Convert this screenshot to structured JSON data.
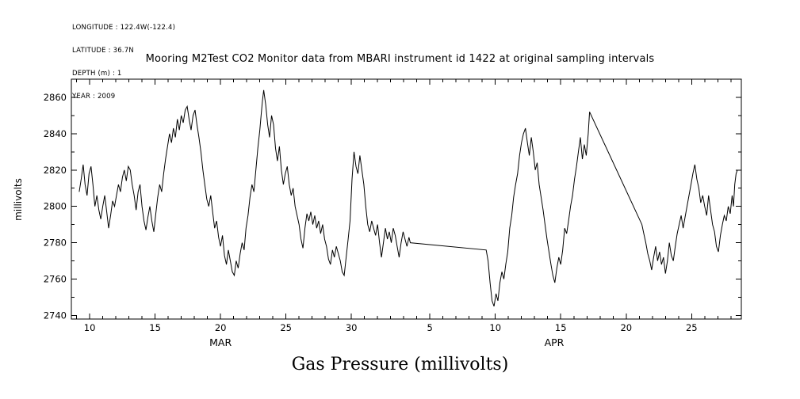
{
  "header": {
    "info_lines": [
      "LONGITUDE : 122.4W(-122.4)",
      "LATITUDE : 36.7N",
      "DEPTH (m) : 1",
      "YEAR : 2009"
    ]
  },
  "chart_data": {
    "type": "line",
    "title": "Mooring M2Test CO2 Monitor data from MBARI instrument id 1422 at original sampling intervals",
    "xlabel": "Gas Pressure (millivolts)",
    "ylabel": "millivolts",
    "background_color": "#ffffff",
    "line_color": "#000000",
    "axis_color": "#000000",
    "grid": false,
    "legend": false,
    "xlim": [
      8.6,
      59.8
    ],
    "ylim": [
      2738,
      2870
    ],
    "y_ticks": [
      2740,
      2760,
      2780,
      2800,
      2820,
      2840,
      2860
    ],
    "x_ticks": [
      {
        "pos": 10,
        "label": "10"
      },
      {
        "pos": 15,
        "label": "15"
      },
      {
        "pos": 20,
        "label": "20"
      },
      {
        "pos": 25,
        "label": "25"
      },
      {
        "pos": 30,
        "label": "30"
      },
      {
        "pos": 36,
        "label": "5"
      },
      {
        "pos": 41,
        "label": "10"
      },
      {
        "pos": 46,
        "label": "15"
      },
      {
        "pos": 51,
        "label": "20"
      },
      {
        "pos": 56,
        "label": "25"
      }
    ],
    "month_labels": [
      {
        "pos": 20,
        "label": "MAR"
      },
      {
        "pos": 45.5,
        "label": "APR"
      }
    ],
    "xtick_unit": "day of month",
    "annotations": [
      "straight segment Apr 3 to Apr 9 indicates data gap",
      "straight segment Apr 17 to Apr 21 indicates data gap"
    ],
    "series": [
      {
        "name": "Gas Pressure",
        "unit": "millivolts",
        "x_encoding": "day number, March day d = d, April day d = 31 + d",
        "points": [
          [
            9.2,
            2808
          ],
          [
            9.35,
            2815
          ],
          [
            9.5,
            2823
          ],
          [
            9.65,
            2812
          ],
          [
            9.8,
            2806
          ],
          [
            9.95,
            2818
          ],
          [
            10.1,
            2822
          ],
          [
            10.25,
            2812
          ],
          [
            10.4,
            2800
          ],
          [
            10.55,
            2806
          ],
          [
            10.7,
            2798
          ],
          [
            10.85,
            2793
          ],
          [
            11.0,
            2800
          ],
          [
            11.15,
            2806
          ],
          [
            11.3,
            2797
          ],
          [
            11.45,
            2788
          ],
          [
            11.6,
            2795
          ],
          [
            11.75,
            2803
          ],
          [
            11.9,
            2800
          ],
          [
            12.05,
            2806
          ],
          [
            12.2,
            2812
          ],
          [
            12.35,
            2808
          ],
          [
            12.5,
            2816
          ],
          [
            12.65,
            2820
          ],
          [
            12.8,
            2814
          ],
          [
            12.95,
            2822
          ],
          [
            13.1,
            2820
          ],
          [
            13.25,
            2812
          ],
          [
            13.4,
            2806
          ],
          [
            13.55,
            2798
          ],
          [
            13.7,
            2808
          ],
          [
            13.85,
            2812
          ],
          [
            14.0,
            2800
          ],
          [
            14.15,
            2792
          ],
          [
            14.3,
            2787
          ],
          [
            14.45,
            2794
          ],
          [
            14.6,
            2800
          ],
          [
            14.75,
            2792
          ],
          [
            14.9,
            2786
          ],
          [
            15.05,
            2796
          ],
          [
            15.2,
            2805
          ],
          [
            15.35,
            2812
          ],
          [
            15.5,
            2808
          ],
          [
            15.65,
            2818
          ],
          [
            15.8,
            2826
          ],
          [
            15.95,
            2833
          ],
          [
            16.1,
            2840
          ],
          [
            16.25,
            2835
          ],
          [
            16.4,
            2843
          ],
          [
            16.55,
            2838
          ],
          [
            16.7,
            2848
          ],
          [
            16.85,
            2842
          ],
          [
            17.0,
            2850
          ],
          [
            17.15,
            2846
          ],
          [
            17.3,
            2853
          ],
          [
            17.45,
            2855
          ],
          [
            17.6,
            2848
          ],
          [
            17.75,
            2842
          ],
          [
            17.9,
            2850
          ],
          [
            18.05,
            2853
          ],
          [
            18.2,
            2845
          ],
          [
            18.35,
            2838
          ],
          [
            18.5,
            2830
          ],
          [
            18.65,
            2820
          ],
          [
            18.8,
            2812
          ],
          [
            18.95,
            2804
          ],
          [
            19.1,
            2800
          ],
          [
            19.25,
            2806
          ],
          [
            19.4,
            2797
          ],
          [
            19.55,
            2788
          ],
          [
            19.7,
            2792
          ],
          [
            19.85,
            2783
          ],
          [
            20.0,
            2778
          ],
          [
            20.15,
            2784
          ],
          [
            20.3,
            2773
          ],
          [
            20.45,
            2768
          ],
          [
            20.6,
            2776
          ],
          [
            20.75,
            2770
          ],
          [
            20.9,
            2764
          ],
          [
            21.05,
            2762
          ],
          [
            21.2,
            2770
          ],
          [
            21.35,
            2766
          ],
          [
            21.5,
            2774
          ],
          [
            21.65,
            2780
          ],
          [
            21.8,
            2776
          ],
          [
            21.95,
            2788
          ],
          [
            22.1,
            2795
          ],
          [
            22.25,
            2805
          ],
          [
            22.4,
            2812
          ],
          [
            22.55,
            2808
          ],
          [
            22.7,
            2820
          ],
          [
            22.85,
            2832
          ],
          [
            23.0,
            2842
          ],
          [
            23.1,
            2850
          ],
          [
            23.2,
            2858
          ],
          [
            23.3,
            2864
          ],
          [
            23.45,
            2856
          ],
          [
            23.6,
            2845
          ],
          [
            23.75,
            2838
          ],
          [
            23.9,
            2850
          ],
          [
            24.05,
            2845
          ],
          [
            24.2,
            2832
          ],
          [
            24.35,
            2825
          ],
          [
            24.5,
            2833
          ],
          [
            24.65,
            2820
          ],
          [
            24.8,
            2812
          ],
          [
            24.95,
            2818
          ],
          [
            25.1,
            2822
          ],
          [
            25.25,
            2812
          ],
          [
            25.4,
            2806
          ],
          [
            25.55,
            2810
          ],
          [
            25.7,
            2800
          ],
          [
            25.85,
            2795
          ],
          [
            26.0,
            2790
          ],
          [
            26.15,
            2782
          ],
          [
            26.3,
            2777
          ],
          [
            26.45,
            2788
          ],
          [
            26.6,
            2796
          ],
          [
            26.75,
            2792
          ],
          [
            26.9,
            2797
          ],
          [
            27.05,
            2790
          ],
          [
            27.2,
            2795
          ],
          [
            27.35,
            2788
          ],
          [
            27.5,
            2792
          ],
          [
            27.65,
            2785
          ],
          [
            27.8,
            2790
          ],
          [
            27.95,
            2782
          ],
          [
            28.1,
            2778
          ],
          [
            28.25,
            2771
          ],
          [
            28.4,
            2768
          ],
          [
            28.55,
            2776
          ],
          [
            28.7,
            2772
          ],
          [
            28.85,
            2778
          ],
          [
            29.0,
            2774
          ],
          [
            29.15,
            2770
          ],
          [
            29.3,
            2764
          ],
          [
            29.45,
            2762
          ],
          [
            29.6,
            2772
          ],
          [
            29.75,
            2782
          ],
          [
            29.9,
            2792
          ],
          [
            30.05,
            2815
          ],
          [
            30.2,
            2830
          ],
          [
            30.35,
            2822
          ],
          [
            30.5,
            2818
          ],
          [
            30.65,
            2828
          ],
          [
            30.8,
            2820
          ],
          [
            30.95,
            2812
          ],
          [
            31.1,
            2800
          ],
          [
            31.25,
            2790
          ],
          [
            31.4,
            2786
          ],
          [
            31.55,
            2792
          ],
          [
            31.7,
            2788
          ],
          [
            31.85,
            2784
          ],
          [
            32.0,
            2790
          ],
          [
            32.15,
            2780
          ],
          [
            32.3,
            2772
          ],
          [
            32.45,
            2780
          ],
          [
            32.6,
            2788
          ],
          [
            32.75,
            2782
          ],
          [
            32.9,
            2786
          ],
          [
            33.05,
            2780
          ],
          [
            33.2,
            2788
          ],
          [
            33.35,
            2784
          ],
          [
            33.5,
            2778
          ],
          [
            33.65,
            2772
          ],
          [
            33.8,
            2780
          ],
          [
            33.95,
            2786
          ],
          [
            34.1,
            2782
          ],
          [
            34.25,
            2778
          ],
          [
            34.4,
            2783
          ],
          [
            34.5,
            2780
          ],
          [
            40.3,
            2776
          ],
          [
            40.45,
            2770
          ],
          [
            40.6,
            2758
          ],
          [
            40.75,
            2748
          ],
          [
            40.9,
            2745
          ],
          [
            41.05,
            2752
          ],
          [
            41.2,
            2748
          ],
          [
            41.35,
            2758
          ],
          [
            41.5,
            2764
          ],
          [
            41.65,
            2760
          ],
          [
            41.8,
            2768
          ],
          [
            41.95,
            2775
          ],
          [
            42.1,
            2788
          ],
          [
            42.25,
            2795
          ],
          [
            42.4,
            2805
          ],
          [
            42.55,
            2812
          ],
          [
            42.7,
            2818
          ],
          [
            42.85,
            2828
          ],
          [
            43.0,
            2835
          ],
          [
            43.15,
            2840
          ],
          [
            43.3,
            2843
          ],
          [
            43.45,
            2835
          ],
          [
            43.6,
            2828
          ],
          [
            43.75,
            2838
          ],
          [
            43.9,
            2830
          ],
          [
            44.05,
            2820
          ],
          [
            44.2,
            2824
          ],
          [
            44.35,
            2812
          ],
          [
            44.5,
            2805
          ],
          [
            44.65,
            2798
          ],
          [
            44.8,
            2790
          ],
          [
            44.95,
            2782
          ],
          [
            45.1,
            2775
          ],
          [
            45.25,
            2768
          ],
          [
            45.4,
            2762
          ],
          [
            45.55,
            2758
          ],
          [
            45.7,
            2766
          ],
          [
            45.85,
            2772
          ],
          [
            46.0,
            2768
          ],
          [
            46.15,
            2776
          ],
          [
            46.3,
            2788
          ],
          [
            46.45,
            2785
          ],
          [
            46.6,
            2792
          ],
          [
            46.75,
            2800
          ],
          [
            46.9,
            2806
          ],
          [
            47.05,
            2815
          ],
          [
            47.2,
            2822
          ],
          [
            47.35,
            2830
          ],
          [
            47.5,
            2838
          ],
          [
            47.65,
            2826
          ],
          [
            47.8,
            2834
          ],
          [
            47.95,
            2828
          ],
          [
            48.1,
            2840
          ],
          [
            48.2,
            2852
          ],
          [
            52.2,
            2790
          ],
          [
            52.35,
            2785
          ],
          [
            52.5,
            2780
          ],
          [
            52.65,
            2774
          ],
          [
            52.8,
            2770
          ],
          [
            52.95,
            2765
          ],
          [
            53.1,
            2772
          ],
          [
            53.25,
            2778
          ],
          [
            53.4,
            2770
          ],
          [
            53.55,
            2775
          ],
          [
            53.7,
            2768
          ],
          [
            53.85,
            2772
          ],
          [
            54.0,
            2763
          ],
          [
            54.15,
            2770
          ],
          [
            54.3,
            2780
          ],
          [
            54.45,
            2773
          ],
          [
            54.6,
            2770
          ],
          [
            54.75,
            2778
          ],
          [
            54.9,
            2785
          ],
          [
            55.05,
            2790
          ],
          [
            55.2,
            2795
          ],
          [
            55.35,
            2788
          ],
          [
            55.5,
            2794
          ],
          [
            55.65,
            2800
          ],
          [
            55.8,
            2806
          ],
          [
            55.95,
            2812
          ],
          [
            56.1,
            2818
          ],
          [
            56.25,
            2823
          ],
          [
            56.4,
            2815
          ],
          [
            56.55,
            2810
          ],
          [
            56.7,
            2802
          ],
          [
            56.85,
            2806
          ],
          [
            57.0,
            2800
          ],
          [
            57.15,
            2795
          ],
          [
            57.3,
            2806
          ],
          [
            57.45,
            2798
          ],
          [
            57.6,
            2790
          ],
          [
            57.75,
            2786
          ],
          [
            57.9,
            2778
          ],
          [
            58.05,
            2775
          ],
          [
            58.2,
            2784
          ],
          [
            58.35,
            2790
          ],
          [
            58.5,
            2795
          ],
          [
            58.65,
            2792
          ],
          [
            58.8,
            2800
          ],
          [
            58.95,
            2796
          ],
          [
            59.1,
            2806
          ],
          [
            59.2,
            2800
          ],
          [
            59.3,
            2812
          ],
          [
            59.4,
            2818
          ],
          [
            59.5,
            2820
          ]
        ]
      }
    ]
  }
}
